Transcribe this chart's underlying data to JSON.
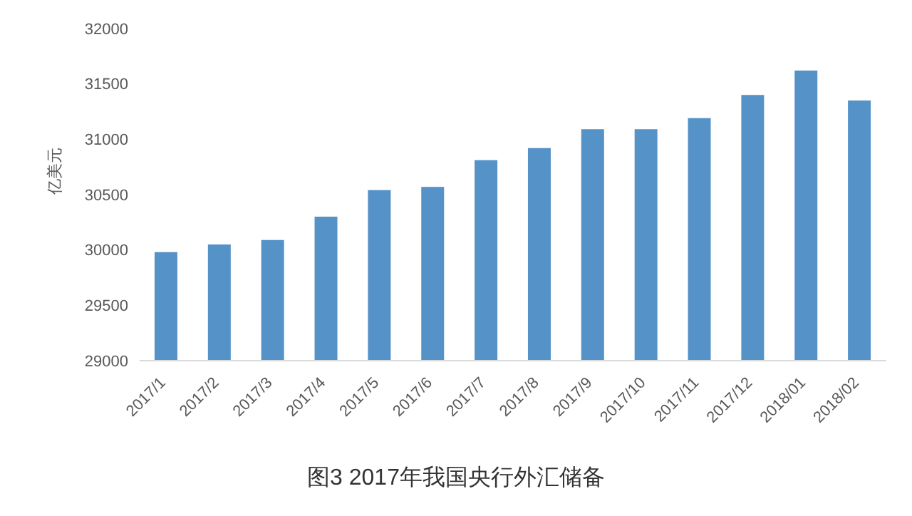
{
  "chart_data": {
    "type": "bar",
    "title": "图3  2017年我国央行外汇储备",
    "ylabel": "亿美元",
    "categories": [
      "2017/1",
      "2017/2",
      "2017/3",
      "2017/4",
      "2017/5",
      "2017/6",
      "2017/7",
      "2017/8",
      "2017/9",
      "2017/10",
      "2017/11",
      "2017/12",
      "2018/01",
      "2018/02"
    ],
    "values": [
      29980,
      30050,
      30090,
      30300,
      30540,
      30570,
      30810,
      30920,
      31090,
      31090,
      31190,
      31400,
      31620,
      31350
    ],
    "color": "#5592c8",
    "ylim": [
      29000,
      32000
    ],
    "yticks": [
      29000,
      29500,
      30000,
      30500,
      31000,
      31500,
      32000
    ],
    "grid": false
  }
}
